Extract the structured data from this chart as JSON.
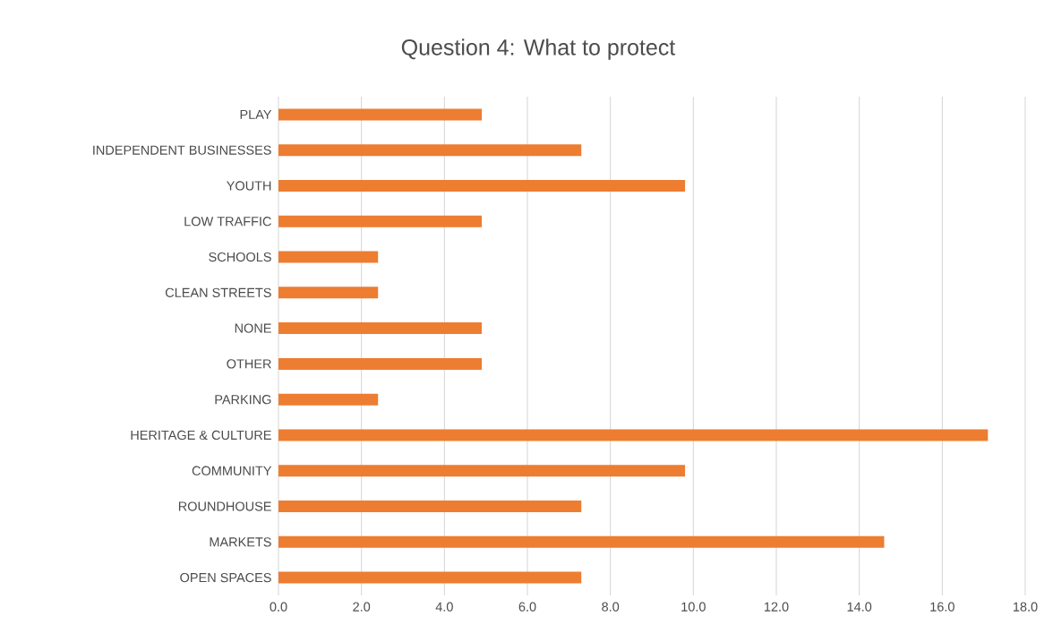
{
  "chart_data": {
    "type": "bar",
    "orientation": "horizontal",
    "title": "Question 4: What to protect",
    "categories": [
      "PLAY",
      "INDEPENDENT BUSINESSES",
      "YOUTH",
      "LOW TRAFFIC",
      "SCHOOLS",
      "CLEAN STREETS",
      "NONE",
      "OTHER",
      "PARKING",
      "HERITAGE & CULTURE",
      "COMMUNITY",
      "ROUNDHOUSE",
      "MARKETS",
      "OPEN SPACES"
    ],
    "values": [
      4.9,
      7.3,
      9.8,
      4.9,
      2.4,
      2.4,
      4.9,
      4.9,
      2.4,
      17.1,
      9.8,
      7.3,
      14.6,
      7.3
    ],
    "color": "#ed7d31",
    "xlim": [
      0,
      18
    ],
    "xticks": [
      {
        "value": 0,
        "label": "0.0"
      },
      {
        "value": 2,
        "label": "2.0"
      },
      {
        "value": 4,
        "label": "4.0"
      },
      {
        "value": 6,
        "label": "6.0"
      },
      {
        "value": 8,
        "label": "8.0"
      },
      {
        "value": 10,
        "label": "10.0"
      },
      {
        "value": 12,
        "label": "12.0"
      },
      {
        "value": 14,
        "label": "14.0"
      },
      {
        "value": 16,
        "label": "16.0"
      },
      {
        "value": 18,
        "label": "18.0"
      }
    ],
    "grid": "x"
  }
}
